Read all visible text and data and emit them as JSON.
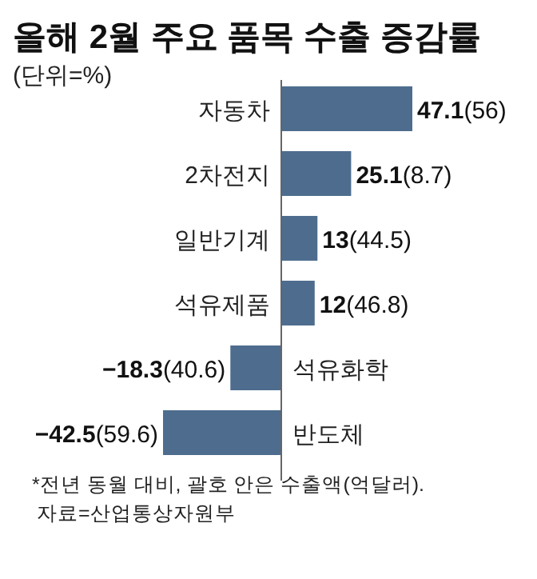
{
  "chart_data": {
    "type": "bar",
    "orientation": "horizontal",
    "title": "올해 2월 주요 품목 수출 증감률",
    "subtitle": "(단위=%)",
    "categories": [
      "자동차",
      "2차전지",
      "일반기계",
      "석유제품",
      "석유화학",
      "반도체"
    ],
    "values": [
      47.1,
      25.1,
      13,
      12,
      -18.3,
      -42.5
    ],
    "value_labels": [
      "47.1(56)",
      "25.1(8.7)",
      "13(44.5)",
      "12(46.8)",
      "−18.3(40.6)",
      "−42.5(59.6)"
    ],
    "color": "#4e6d8e",
    "annotations": [
      "*전년 동월 대비, 괄호 안은 수출액(억달러).",
      "자료=산업통상자원부"
    ]
  }
}
